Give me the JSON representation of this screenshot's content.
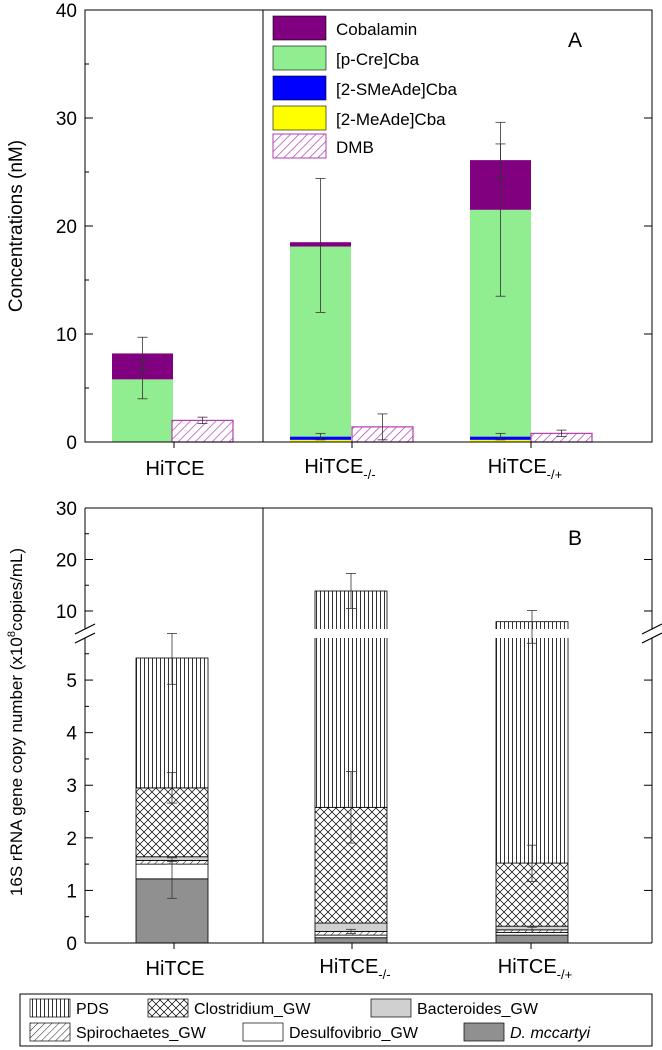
{
  "figure": {
    "panel_a_label": "A",
    "panel_b_label": "B",
    "axis_break_mark": "//"
  },
  "colors": {
    "cobalamin": "#800080",
    "pcre": "#90EE90",
    "smeade": "#0000FF",
    "meade": "#FFFF00",
    "dmb": "#B03EB0",
    "dmccartyi": "#909090",
    "bacteroides": "#D0D0D0",
    "axis": "#000000"
  },
  "chart_data": [
    {
      "id": "A",
      "type": "bar",
      "stacked": true,
      "ylabel": "Concentrations (nM)",
      "xlabel": "",
      "ylim": [
        0,
        40
      ],
      "yticks": [
        "0",
        "10",
        "20",
        "30",
        "40"
      ],
      "groups": [
        {
          "main": "HiTCE",
          "sub": ""
        },
        {
          "main": "HiTCE",
          "sub": "-/-"
        },
        {
          "main": "HiTCE",
          "sub": "-/+"
        }
      ],
      "legend_position": "top-center",
      "series": [
        {
          "name": "[2-MeAde]Cba",
          "pattern": "meade",
          "values": [
            0,
            0.2,
            0.2
          ]
        },
        {
          "name": "[2-SMeAde]Cba",
          "pattern": "smeade",
          "values": [
            0,
            0.3,
            0.3
          ]
        },
        {
          "name": "[p-Cre]Cba",
          "pattern": "pcre",
          "values": [
            5.8,
            17.6,
            21.0
          ]
        },
        {
          "name": "Cobalamin",
          "pattern": "cobalamin",
          "values": [
            2.4,
            0.4,
            4.6
          ]
        },
        {
          "name": "DMB",
          "pattern": "dmb",
          "values": [
            2.0,
            1.4,
            0.8
          ]
        }
      ],
      "legend_order": [
        "Cobalamin",
        "[p-Cre]Cba",
        "[2-SMeAde]Cba",
        "[2-MeAde]Cba",
        "DMB"
      ],
      "error_bars": [
        {
          "group": 0,
          "bar": "main",
          "value": 5.8,
          "low": 4.0,
          "high": 7.5
        },
        {
          "group": 0,
          "bar": "main",
          "value": 8.2,
          "low": 6.7,
          "high": 9.7
        },
        {
          "group": 0,
          "bar": "dmb",
          "value": 2.0,
          "low": 1.7,
          "high": 2.3
        },
        {
          "group": 1,
          "bar": "main",
          "value": 0.5,
          "low": 0.2,
          "high": 0.8
        },
        {
          "group": 1,
          "bar": "main",
          "value": 18.2,
          "low": 12.0,
          "high": 24.4
        },
        {
          "group": 1,
          "bar": "dmb",
          "value": 1.4,
          "low": 0.2,
          "high": 2.6
        },
        {
          "group": 2,
          "bar": "main",
          "value": 0.5,
          "low": 0.2,
          "high": 0.8
        },
        {
          "group": 2,
          "bar": "main",
          "value": 21.5,
          "low": 13.5,
          "high": 27.6
        },
        {
          "group": 2,
          "bar": "main",
          "value": 26.1,
          "low": 24.5,
          "high": 29.6
        },
        {
          "group": 2,
          "bar": "dmb",
          "value": 0.8,
          "low": 0.5,
          "high": 1.1
        }
      ]
    },
    {
      "id": "B",
      "type": "bar",
      "stacked": true,
      "ylabel": "16S rRNA gene copy number (x10",
      "ylabel_sup": "8",
      "ylabel_tail": "copies/mL)",
      "xlabel": "",
      "axis_break": {
        "lower": [
          0,
          5.8
        ],
        "upper": [
          6.5,
          30
        ]
      },
      "yticks_lower": [
        "0",
        "1",
        "2",
        "3",
        "4",
        "5"
      ],
      "yticks_upper": [
        "10",
        "20",
        "30"
      ],
      "groups": [
        {
          "main": "HiTCE",
          "sub": ""
        },
        {
          "main": "HiTCE",
          "sub": "-/-"
        },
        {
          "main": "HiTCE",
          "sub": "-/+"
        }
      ],
      "legend_position": "bottom (below plot)",
      "series": [
        {
          "name": "D. mccartyi",
          "pattern": "dmccartyi",
          "values": [
            1.22,
            0.1,
            0.15
          ]
        },
        {
          "name": "Desulfovibrio_GW",
          "pattern": "desulfo",
          "values": [
            0.28,
            0.05,
            0.05
          ]
        },
        {
          "name": "Spirochaetes_GW",
          "pattern": "spiro",
          "values": [
            0.07,
            0.07,
            0.05
          ]
        },
        {
          "name": "Bacteroides_GW",
          "pattern": "bacteroides",
          "values": [
            0.07,
            0.16,
            0.07
          ]
        },
        {
          "name": "Clostridium_GW",
          "pattern": "clostridium",
          "values": [
            1.31,
            2.2,
            1.2
          ]
        },
        {
          "name": "PDS",
          "pattern": "pds",
          "values": [
            2.47,
            11.3,
            6.4
          ]
        }
      ],
      "legend_order": [
        "PDS",
        "Clostridium_GW",
        "Bacteroides_GW",
        "Spirochaetes_GW",
        "Desulfovibrio_GW",
        "D. mccartyi"
      ],
      "error_bars": [
        {
          "group": 0,
          "value": 1.22,
          "low": 0.85,
          "high": 1.55
        },
        {
          "group": 0,
          "value": 1.55,
          "low": 1.5,
          "high": 1.62
        },
        {
          "group": 0,
          "value": 2.95,
          "low": 2.66,
          "high": 3.24
        },
        {
          "group": 0,
          "value": 5.43,
          "low": 4.92,
          "high": 6.0
        },
        {
          "group": 1,
          "value": 0.22,
          "low": 0.18,
          "high": 0.26
        },
        {
          "group": 1,
          "value": 2.58,
          "low": 1.9,
          "high": 3.26
        },
        {
          "group": 1,
          "value": 13.8,
          "low": 10.5,
          "high": 17.3
        },
        {
          "group": 2,
          "value": 0.25,
          "low": 0.2,
          "high": 0.3
        },
        {
          "group": 2,
          "value": 1.52,
          "low": 1.17,
          "high": 1.86
        },
        {
          "group": 2,
          "value": 7.9,
          "low": 5.7,
          "high": 10.1
        }
      ]
    }
  ]
}
